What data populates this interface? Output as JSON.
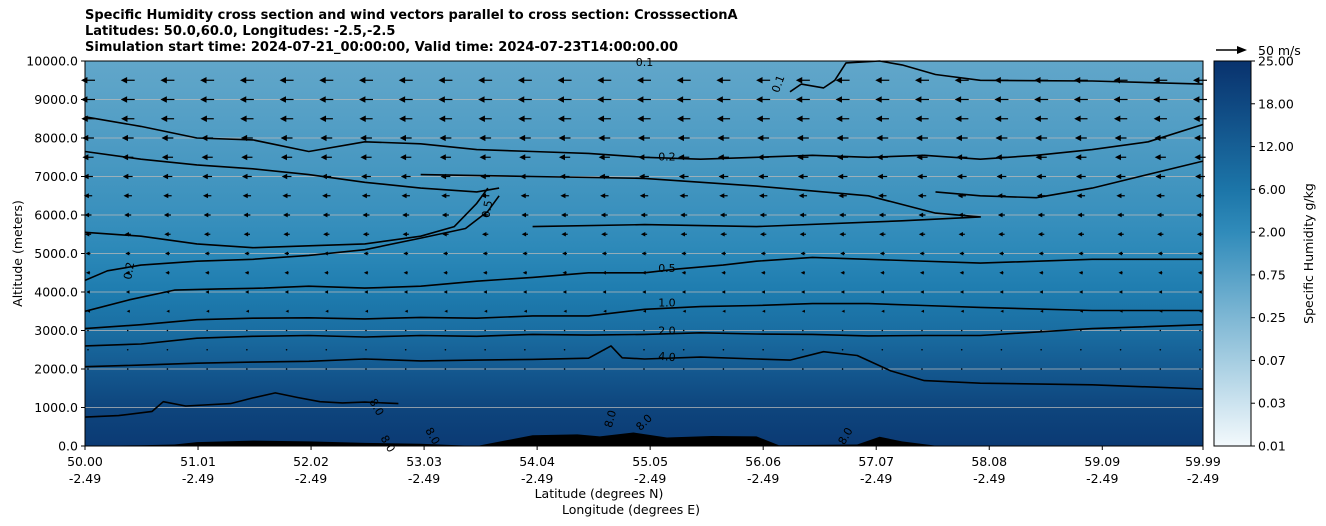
{
  "chart_data": {
    "type": "contourf",
    "title_lines": [
      "Specific Humidity cross section and wind vectors parallel to cross section: CrosssectionA",
      "Latitudes: 50.0,60.0, Longitudes: -2.5,-2.5",
      "Simulation start time: 2024-07-21_00:00:00, Valid time: 2024-07-23T14:00:00.00"
    ],
    "xlabel_lines": [
      "Latitude (degrees N)",
      "Longitude (degrees E)"
    ],
    "ylabel": "Altitude (meters)",
    "x_tick_lat": [
      "50.00",
      "51.01",
      "52.02",
      "53.03",
      "54.04",
      "55.05",
      "56.06",
      "57.07",
      "58.08",
      "59.09",
      "59.99"
    ],
    "x_tick_lon": [
      "-2.49",
      "-2.49",
      "-2.49",
      "-2.49",
      "-2.49",
      "-2.49",
      "-2.49",
      "-2.49",
      "-2.49",
      "-2.49",
      "-2.49"
    ],
    "xlim": [
      50.0,
      59.99
    ],
    "y_ticks": [
      "0.0",
      "1000.0",
      "2000.0",
      "3000.0",
      "4000.0",
      "5000.0",
      "6000.0",
      "7000.0",
      "8000.0",
      "9000.0",
      "10000.0"
    ],
    "ylim": [
      0,
      10000
    ],
    "grid": "horizontal",
    "colorbar": {
      "label": "Specific Humidity g/kg",
      "tick_labels": [
        "0.01",
        "0.03",
        "0.07",
        "0.25",
        "0.75",
        "2.00",
        "6.00",
        "12.00",
        "18.00",
        "25.00"
      ],
      "colormap": "PuBu",
      "color_light": "#f7fbfd",
      "color_dark": "#08306b"
    },
    "wind_key_label": "50 m/s",
    "contour_lines": [
      {
        "label": "8.0",
        "points": [
          [
            50.0,
            750
          ],
          [
            50.3,
            790
          ],
          [
            50.6,
            900
          ],
          [
            50.7,
            1150
          ],
          [
            50.9,
            1040
          ],
          [
            51.3,
            1100
          ],
          [
            51.5,
            1250
          ],
          [
            51.7,
            1380
          ],
          [
            51.9,
            1260
          ],
          [
            52.1,
            1150
          ],
          [
            52.3,
            1120
          ],
          [
            52.5,
            1140
          ],
          [
            52.8,
            1100
          ]
        ]
      },
      {
        "label": "4.0",
        "points": [
          [
            50.0,
            2060
          ],
          [
            50.5,
            2100
          ],
          [
            51.0,
            2150
          ],
          [
            51.5,
            2180
          ],
          [
            52.0,
            2200
          ],
          [
            52.5,
            2260
          ],
          [
            53.0,
            2210
          ],
          [
            53.5,
            2230
          ],
          [
            54.0,
            2250
          ],
          [
            54.5,
            2280
          ],
          [
            54.7,
            2600
          ],
          [
            54.8,
            2290
          ],
          [
            55.0,
            2260
          ],
          [
            55.5,
            2310
          ],
          [
            56.0,
            2260
          ],
          [
            56.3,
            2230
          ],
          [
            56.6,
            2450
          ],
          [
            56.9,
            2350
          ],
          [
            57.2,
            1950
          ],
          [
            57.5,
            1700
          ],
          [
            58.0,
            1630
          ],
          [
            59.0,
            1590
          ],
          [
            59.99,
            1480
          ]
        ]
      },
      {
        "label": "2.0",
        "points": [
          [
            50.0,
            2600
          ],
          [
            50.5,
            2650
          ],
          [
            51.0,
            2800
          ],
          [
            51.5,
            2850
          ],
          [
            52.0,
            2870
          ],
          [
            52.5,
            2830
          ],
          [
            53.0,
            2870
          ],
          [
            53.5,
            2850
          ],
          [
            54.0,
            2900
          ],
          [
            54.5,
            2880
          ],
          [
            55.0,
            2900
          ],
          [
            55.5,
            2940
          ],
          [
            56.0,
            2910
          ],
          [
            56.5,
            2900
          ],
          [
            57.0,
            2860
          ],
          [
            57.5,
            2870
          ],
          [
            58.0,
            2870
          ],
          [
            59.0,
            3050
          ],
          [
            59.99,
            3150
          ]
        ]
      },
      {
        "label": "1.0",
        "points": [
          [
            50.0,
            3050
          ],
          [
            50.5,
            3150
          ],
          [
            51.0,
            3280
          ],
          [
            51.5,
            3320
          ],
          [
            52.0,
            3330
          ],
          [
            52.5,
            3300
          ],
          [
            53.0,
            3340
          ],
          [
            53.5,
            3320
          ],
          [
            54.0,
            3380
          ],
          [
            54.5,
            3380
          ],
          [
            55.0,
            3550
          ],
          [
            55.5,
            3620
          ],
          [
            56.0,
            3650
          ],
          [
            56.5,
            3700
          ],
          [
            57.0,
            3700
          ],
          [
            57.5,
            3650
          ],
          [
            58.0,
            3600
          ],
          [
            59.0,
            3520
          ],
          [
            59.99,
            3520
          ]
        ]
      },
      {
        "label": "0.5",
        "points": [
          [
            50.0,
            3500
          ],
          [
            50.4,
            3800
          ],
          [
            50.8,
            4050
          ],
          [
            51.2,
            4080
          ],
          [
            51.6,
            4100
          ],
          [
            52.0,
            4150
          ],
          [
            52.5,
            4100
          ],
          [
            53.0,
            4150
          ],
          [
            53.5,
            4280
          ],
          [
            54.0,
            4380
          ],
          [
            54.5,
            4500
          ],
          [
            55.0,
            4500
          ],
          [
            55.3,
            4600
          ],
          [
            55.7,
            4700
          ],
          [
            56.0,
            4800
          ],
          [
            56.5,
            4900
          ],
          [
            57.0,
            4850
          ],
          [
            58.0,
            4750
          ],
          [
            59.0,
            4850
          ],
          [
            59.99,
            4850
          ]
        ]
      },
      {
        "label": "0.2",
        "points": [
          [
            50.0,
            4300
          ],
          [
            50.2,
            4550
          ],
          [
            50.5,
            4700
          ],
          [
            51.0,
            4800
          ],
          [
            51.5,
            4850
          ],
          [
            52.0,
            4950
          ],
          [
            52.5,
            5100
          ],
          [
            53.0,
            5400
          ],
          [
            53.4,
            5650
          ],
          [
            53.6,
            6100
          ],
          [
            53.7,
            6500
          ]
        ]
      },
      {
        "label": "0.5",
        "points": [
          [
            50.0,
            5550
          ],
          [
            50.5,
            5450
          ],
          [
            51.0,
            5250
          ],
          [
            51.5,
            5150
          ],
          [
            52.0,
            5200
          ],
          [
            52.5,
            5250
          ],
          [
            53.0,
            5450
          ],
          [
            53.3,
            5700
          ],
          [
            53.5,
            6300
          ],
          [
            53.6,
            6700
          ]
        ]
      },
      {
        "label": "0.2",
        "points": [
          [
            50.0,
            7650
          ],
          [
            50.5,
            7450
          ],
          [
            51.0,
            7300
          ],
          [
            51.5,
            7200
          ],
          [
            52.0,
            7050
          ],
          [
            52.5,
            6850
          ],
          [
            53.0,
            6700
          ],
          [
            53.5,
            6600
          ],
          [
            53.7,
            6700
          ]
        ]
      },
      {
        "label": "0.2",
        "points": [
          [
            50.0,
            8550
          ],
          [
            50.5,
            8300
          ],
          [
            51.0,
            8000
          ],
          [
            51.5,
            7950
          ],
          [
            52.0,
            7650
          ],
          [
            52.5,
            7900
          ],
          [
            53.0,
            7850
          ],
          [
            53.5,
            7700
          ],
          [
            54.0,
            7650
          ],
          [
            54.5,
            7600
          ],
          [
            55.0,
            7500
          ],
          [
            55.5,
            7450
          ],
          [
            56.0,
            7500
          ],
          [
            56.5,
            7550
          ],
          [
            57.0,
            7500
          ],
          [
            57.5,
            7550
          ],
          [
            58.0,
            7450
          ],
          [
            58.5,
            7550
          ],
          [
            59.0,
            7700
          ],
          [
            59.5,
            7900
          ],
          [
            59.99,
            8350
          ]
        ]
      },
      {
        "label": "0.1",
        "points": [
          [
            56.3,
            9200
          ],
          [
            56.4,
            9400
          ],
          [
            56.6,
            9300
          ],
          [
            56.7,
            9500
          ],
          [
            56.8,
            9950
          ],
          [
            57.1,
            10000
          ],
          [
            57.3,
            9900
          ],
          [
            57.6,
            9650
          ],
          [
            58.0,
            9500
          ],
          [
            59.0,
            9480
          ],
          [
            59.99,
            9400
          ]
        ]
      },
      {
        "label": "",
        "points": [
          [
            57.6,
            6600
          ],
          [
            58.0,
            6500
          ],
          [
            58.5,
            6450
          ],
          [
            59.0,
            6700
          ],
          [
            59.99,
            7400
          ]
        ]
      },
      {
        "label": "",
        "points": [
          [
            53.0,
            7050
          ],
          [
            54.0,
            7000
          ],
          [
            55.0,
            6950
          ],
          [
            56.0,
            6750
          ],
          [
            57.0,
            6500
          ],
          [
            57.6,
            6050
          ],
          [
            58.0,
            5950
          ],
          [
            57.3,
            5850
          ],
          [
            56.0,
            5700
          ],
          [
            55.0,
            5750
          ],
          [
            54.0,
            5700
          ]
        ]
      }
    ],
    "contour_labels": [
      {
        "text": "0.1",
        "x": 55.0,
        "y": 9950,
        "rot": 0
      },
      {
        "text": "0.1",
        "x": 56.2,
        "y": 9400,
        "rot": -70
      },
      {
        "text": "0.2",
        "x": 55.2,
        "y": 7500,
        "rot": 0
      },
      {
        "text": "0.5",
        "x": 53.6,
        "y": 6150,
        "rot": -80
      },
      {
        "text": "0.2",
        "x": 50.4,
        "y": 4550,
        "rot": -80
      },
      {
        "text": "0.5",
        "x": 55.2,
        "y": 4600,
        "rot": 0
      },
      {
        "text": "1.0",
        "x": 55.2,
        "y": 3700,
        "rot": 0
      },
      {
        "text": "2.0",
        "x": 55.2,
        "y": 2970,
        "rot": 0
      },
      {
        "text": "4.0",
        "x": 55.2,
        "y": 2300,
        "rot": 5
      },
      {
        "text": "8.0",
        "x": 52.6,
        "y": 1000,
        "rot": 60
      },
      {
        "text": "8.0",
        "x": 53.1,
        "y": 250,
        "rot": 60
      },
      {
        "text": "8.0",
        "x": 52.7,
        "y": 50,
        "rot": 60
      },
      {
        "text": "8.0",
        "x": 54.7,
        "y": 700,
        "rot": -75
      },
      {
        "text": "8.0",
        "x": 55.0,
        "y": 600,
        "rot": -45
      },
      {
        "text": "8.0",
        "x": 56.8,
        "y": 250,
        "rot": -60
      }
    ],
    "wind_rows": [
      {
        "alt": 9500,
        "len": 1.0
      },
      {
        "alt": 9000,
        "len": 1.0
      },
      {
        "alt": 8500,
        "len": 0.95
      },
      {
        "alt": 8000,
        "len": 0.85
      },
      {
        "alt": 7500,
        "len": 0.8
      },
      {
        "alt": 7000,
        "len": 0.7
      },
      {
        "alt": 6500,
        "len": 0.6
      },
      {
        "alt": 6000,
        "len": 0.5
      },
      {
        "alt": 5500,
        "len": 0.45
      },
      {
        "alt": 5000,
        "len": 0.35
      },
      {
        "alt": 4500,
        "len": 0.3
      },
      {
        "alt": 4000,
        "len": 0.25
      },
      {
        "alt": 3500,
        "len": 0.15
      },
      {
        "alt": 3000,
        "len": 0.08
      },
      {
        "alt": 2500,
        "len": 0.05
      },
      {
        "alt": 2000,
        "len": 0.03
      }
    ],
    "terrain": [
      [
        50.0,
        0
      ],
      [
        50.5,
        20
      ],
      [
        50.8,
        40
      ],
      [
        51.0,
        100
      ],
      [
        51.5,
        140
      ],
      [
        52.0,
        120
      ],
      [
        52.5,
        80
      ],
      [
        53.0,
        60
      ],
      [
        53.5,
        0
      ],
      [
        54.0,
        280
      ],
      [
        54.4,
        300
      ],
      [
        54.6,
        250
      ],
      [
        54.9,
        350
      ],
      [
        55.2,
        220
      ],
      [
        55.6,
        260
      ],
      [
        56.0,
        250
      ],
      [
        56.2,
        20
      ],
      [
        56.9,
        40
      ],
      [
        57.1,
        240
      ],
      [
        57.3,
        120
      ],
      [
        57.6,
        10
      ],
      [
        57.8,
        0
      ],
      [
        59.99,
        0
      ]
    ],
    "bands": [
      {
        "y": 10000,
        "level": 0.42
      },
      {
        "y": 9000,
        "level": 0.44
      },
      {
        "y": 8000,
        "level": 0.47
      },
      {
        "y": 7000,
        "level": 0.5
      },
      {
        "y": 6000,
        "level": 0.53
      },
      {
        "y": 5000,
        "level": 0.57
      },
      {
        "y": 4000,
        "level": 0.63
      },
      {
        "y": 3000,
        "level": 0.7
      },
      {
        "y": 2000,
        "level": 0.8
      },
      {
        "y": 1000,
        "level": 0.9
      },
      {
        "y": 0,
        "level": 0.95
      }
    ]
  }
}
